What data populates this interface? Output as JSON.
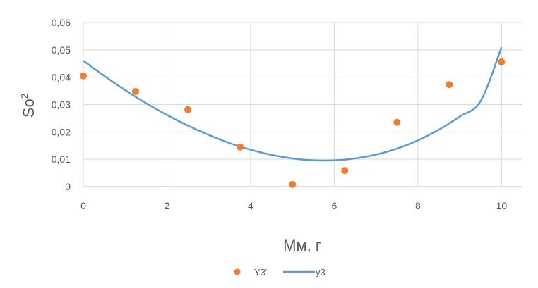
{
  "chart_data": {
    "type": "scatter",
    "title": "",
    "xlabel": "Мм, г",
    "ylabel": "So",
    "ylabel_superscript": "2",
    "xlim": [
      0,
      10.5
    ],
    "ylim": [
      0,
      0.06
    ],
    "x_ticks": [
      0,
      2,
      4,
      6,
      8,
      10
    ],
    "x_tick_labels": [
      "0",
      "2",
      "4",
      "6",
      "8",
      "10"
    ],
    "y_ticks": [
      0,
      0.01,
      0.02,
      0.03,
      0.04,
      0.05,
      0.06
    ],
    "y_tick_labels": [
      "0",
      "0,01",
      "0,02",
      "0,03",
      "0,04",
      "0,05",
      "0,06"
    ],
    "grid": true,
    "legend_position": "bottom",
    "series": [
      {
        "name": "Y3'",
        "kind": "markers",
        "color": "#ED7D31",
        "x": [
          0,
          1.25,
          2.5,
          3.75,
          5,
          6.25,
          7.5,
          8.75,
          10
        ],
        "y": [
          0.0405,
          0.0348,
          0.0281,
          0.0145,
          0.0008,
          0.0059,
          0.0235,
          0.0373,
          0.0456
        ]
      },
      {
        "name": "y3",
        "kind": "line",
        "color": "#5B9BD5",
        "x": [
          0,
          0.5,
          1,
          1.5,
          2,
          2.5,
          3,
          3.5,
          4,
          4.5,
          5,
          5.5,
          6,
          6.5,
          7,
          7.5,
          8,
          8.5,
          9,
          9.5,
          10
        ],
        "y": [
          0.046,
          0.0405,
          0.0353,
          0.0305,
          0.0262,
          0.0223,
          0.0189,
          0.0159,
          0.0135,
          0.0116,
          0.0103,
          0.0096,
          0.0096,
          0.0103,
          0.0117,
          0.0139,
          0.0169,
          0.0208,
          0.0256,
          0.0313,
          0.051
        ]
      }
    ]
  }
}
